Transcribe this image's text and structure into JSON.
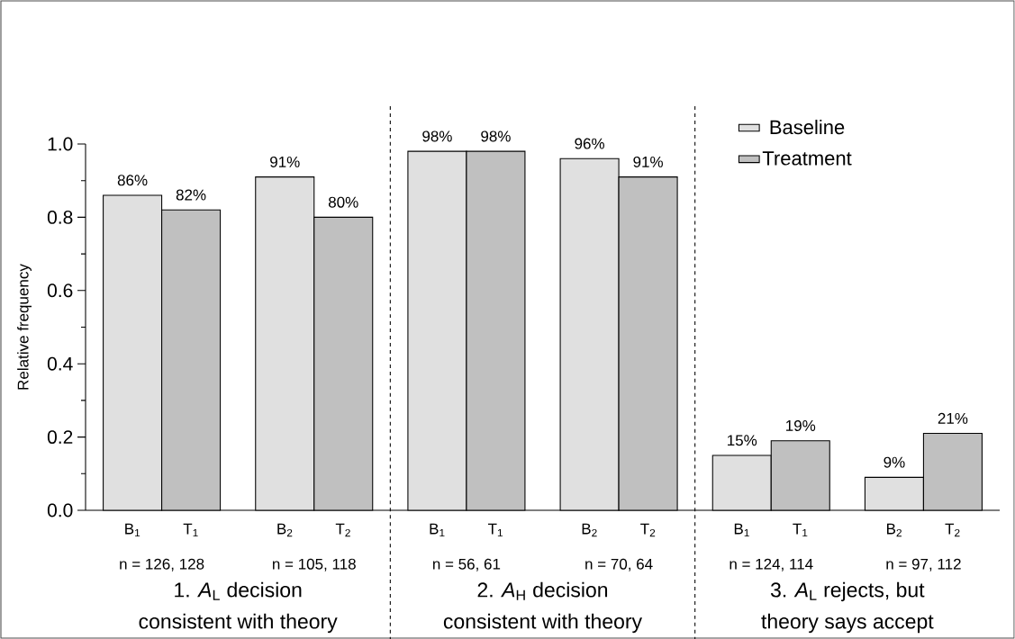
{
  "chart_data": {
    "type": "bar",
    "ylabel": "Relative frequency",
    "categories": [
      "n = 126, 128",
      "n = 105, 118",
      "n = 56, 61",
      "n = 70, 64",
      "n = 124, 114",
      "n = 97, 112"
    ],
    "series": [
      {
        "name": "Baseline",
        "color": "#e0e0e0",
        "values": [
          0.86,
          0.91,
          0.98,
          0.96,
          0.15,
          0.09
        ],
        "value_labels": [
          "86%",
          "91%",
          "98%",
          "96%",
          "15%",
          "9%"
        ]
      },
      {
        "name": "Treatment",
        "color": "#c0c0c0",
        "values": [
          0.82,
          0.8,
          0.98,
          0.91,
          0.19,
          0.21
        ],
        "value_labels": [
          "82%",
          "80%",
          "98%",
          "91%",
          "19%",
          "21%"
        ]
      }
    ],
    "ylim": [
      0,
      1.0
    ],
    "yticks": [
      {
        "value": 0,
        "label": "0.0"
      },
      {
        "value": 0.1,
        "label": null
      },
      {
        "value": 0.2,
        "label": "0.2"
      },
      {
        "value": 0.3,
        "label": null
      },
      {
        "value": 0.4,
        "label": "0.4"
      },
      {
        "value": 0.5,
        "label": null
      },
      {
        "value": 0.6,
        "label": "0.6"
      },
      {
        "value": 0.7,
        "label": null
      },
      {
        "value": 0.8,
        "label": "0.8"
      },
      {
        "value": 0.9,
        "label": null
      },
      {
        "value": 1.0,
        "label": "1.0"
      }
    ],
    "legend": "top right",
    "annotations": [
      "B$_{1}$",
      "T$_{1}$",
      "B$_{2}$",
      "T$_{2}$",
      "B$_{1}$",
      "T$_{1}$",
      "B$_{2}$",
      "T$_{2}$",
      "B$_{1}$",
      "T$_{1}$",
      "B$_{2}$",
      "T$_{2}$",
      "1.  *A*$_{L}$ decision",
      "consistent with theory",
      "2.  *A*$_{H}$ decision",
      "consistent with theory",
      "3.  *A*$_{L}$ rejects,  but",
      "theory says accept"
    ]
  }
}
